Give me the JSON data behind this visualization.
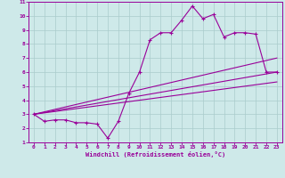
{
  "xlabel": "Windchill (Refroidissement éolien,°C)",
  "bg_color": "#cee9e9",
  "grid_color": "#aacccc",
  "line_color": "#990099",
  "spine_color": "#990099",
  "xlim": [
    -0.5,
    23.5
  ],
  "ylim": [
    1,
    11
  ],
  "xticks": [
    0,
    1,
    2,
    3,
    4,
    5,
    6,
    7,
    8,
    9,
    10,
    11,
    12,
    13,
    14,
    15,
    16,
    17,
    18,
    19,
    20,
    21,
    22,
    23
  ],
  "yticks": [
    1,
    2,
    3,
    4,
    5,
    6,
    7,
    8,
    9,
    10,
    11
  ],
  "series": [
    {
      "x": [
        0,
        1,
        2,
        3,
        4,
        5,
        6,
        7,
        8,
        9,
        10,
        11,
        12,
        13,
        14,
        15,
        16,
        17,
        18,
        19,
        20,
        21,
        22,
        23
      ],
      "y": [
        3.0,
        2.5,
        2.6,
        2.6,
        2.4,
        2.4,
        2.3,
        1.3,
        2.5,
        4.5,
        6.0,
        8.3,
        8.8,
        8.8,
        9.7,
        10.7,
        9.8,
        10.1,
        8.5,
        8.8,
        8.8,
        8.7,
        6.0,
        6.0
      ],
      "marker": true
    },
    {
      "x": [
        0,
        23
      ],
      "y": [
        3.0,
        7.0
      ],
      "marker": false
    },
    {
      "x": [
        0,
        23
      ],
      "y": [
        3.0,
        6.0
      ],
      "marker": false
    },
    {
      "x": [
        0,
        23
      ],
      "y": [
        3.0,
        5.3
      ],
      "marker": false
    }
  ]
}
